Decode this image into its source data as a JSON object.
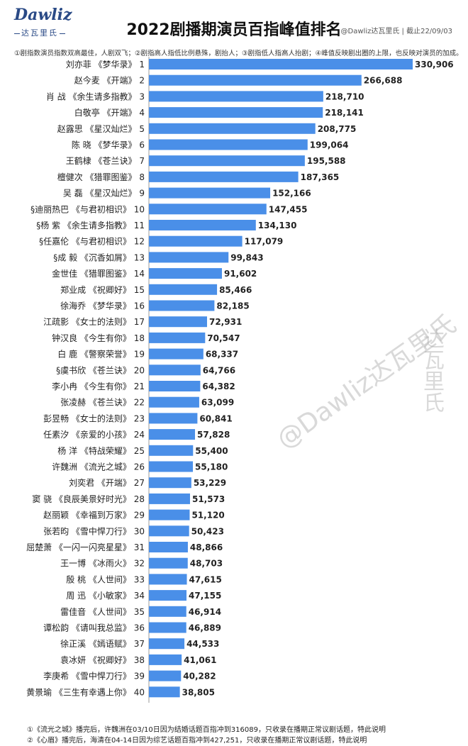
{
  "header": {
    "logo_text": "Dawliz",
    "logo_sub": "达瓦里氏",
    "title": "2022剧播期演员百指峰值排名",
    "source": "@Dawliz达瓦里氏 | 截止22/09/03"
  },
  "notes": "①剧指数演员指数双高最佳，人剧双飞；②剧指高人指低比例悬殊，剧抬人；③剧指低人指高人抬剧；④峰值反映剧出圈的上限，也反映对演员的加成。",
  "watermarks": {
    "vertical": "达瓦里氏",
    "diagonal": "@Dawliz达瓦里氏"
  },
  "footnotes": [
    "①《流光之城》播完后，许魏洲在03/10日因为结婚话题百指冲到316089，只收录在播期正常议剧话题，特此说明",
    "②《心眉》播完后，海清在04-14日因为综艺话题百指冲到427,251，只收录在播期正常议剧话题，特此说明"
  ],
  "chart_data": {
    "type": "bar",
    "orientation": "horizontal",
    "bar_color": "#4a8fe8",
    "categories": [
      "刘亦菲 《梦华录》 1",
      "赵今麦 《开端》 2",
      "肖 战 《余生请多指教》 3",
      "白敬亭 《开端》 4",
      "赵露思 《星汉灿烂》 5",
      "陈 晓 《梦华录》 6",
      "王鹤棣 《苍兰诀》 7",
      "檀健次 《猎罪图鉴》 8",
      "吴 磊 《星汉灿烂》 9",
      "§迪丽热巴 《与君初相识》 10",
      "§杨 紫 《余生请多指教》 11",
      "§任嘉伦 《与君初相识》 12",
      "§成 毅 《沉香如屑》 13",
      "金世佳 《猎罪图鉴》 14",
      "郑业成 《祝卿好》 15",
      "徐海乔 《梦华录》 16",
      "江疏影 《女士的法则》 17",
      "钟汉良 《今生有你》 18",
      "白 鹿 《警察荣誉》 19",
      "§虞书欣 《苍兰诀》 20",
      "李小冉 《今生有你》 21",
      "张凌赫 《苍兰诀》 22",
      "彭昱畅 《女士的法则》 23",
      "任素汐 《亲爱的小孩》 24",
      "杨 洋 《特战荣耀》 25",
      "许魏洲 《流光之城》 26",
      "刘奕君 《开端》 27",
      "窦 骁 《良辰美景好时光》 28",
      "赵丽颖 《幸福到万家》 29",
      "张若昀 《雪中悍刀行》 30",
      "屈楚萧 《一闪一闪亮星星》 31",
      "王一博 《冰雨火》 32",
      "殷 桃 《人世间》 33",
      "周 迅 《小敏家》 34",
      "雷佳音 《人世间》 35",
      "谭松韵 《请叫我总监》 36",
      "徐正溪 《嫣语赋》 37",
      "袁冰妍 《祝卿好》 38",
      "李庚希 《雪中悍刀行》 39",
      "黄景瑜 《三生有幸遇上你》 40"
    ],
    "values": [
      330906,
      266688,
      218710,
      218141,
      208775,
      199064,
      195588,
      187365,
      152166,
      147455,
      134130,
      117079,
      99843,
      91602,
      85466,
      82185,
      72931,
      70547,
      68337,
      64766,
      64382,
      63099,
      60841,
      57828,
      55400,
      55180,
      53229,
      51573,
      51120,
      50423,
      48866,
      48703,
      47615,
      47155,
      46914,
      46889,
      44533,
      41061,
      40282,
      38805
    ],
    "value_labels": [
      "330,906",
      "266,688",
      "218,710",
      "218,141",
      "208,775",
      "199,064",
      "195,588",
      "187,365",
      "152,166",
      "147,455",
      "134,130",
      "117,079",
      "99,843",
      "91,602",
      "85,466",
      "82,185",
      "72,931",
      "70,547",
      "68,337",
      "64,766",
      "64,382",
      "63,099",
      "60,841",
      "57,828",
      "55,400",
      "55,180",
      "53,229",
      "51,573",
      "51,120",
      "50,423",
      "48,866",
      "48,703",
      "47,615",
      "47,155",
      "46,914",
      "46,889",
      "44,533",
      "41,061",
      "40,282",
      "38,805"
    ],
    "xlim": [
      0,
      330906
    ],
    "grid": false,
    "legend": "none"
  }
}
